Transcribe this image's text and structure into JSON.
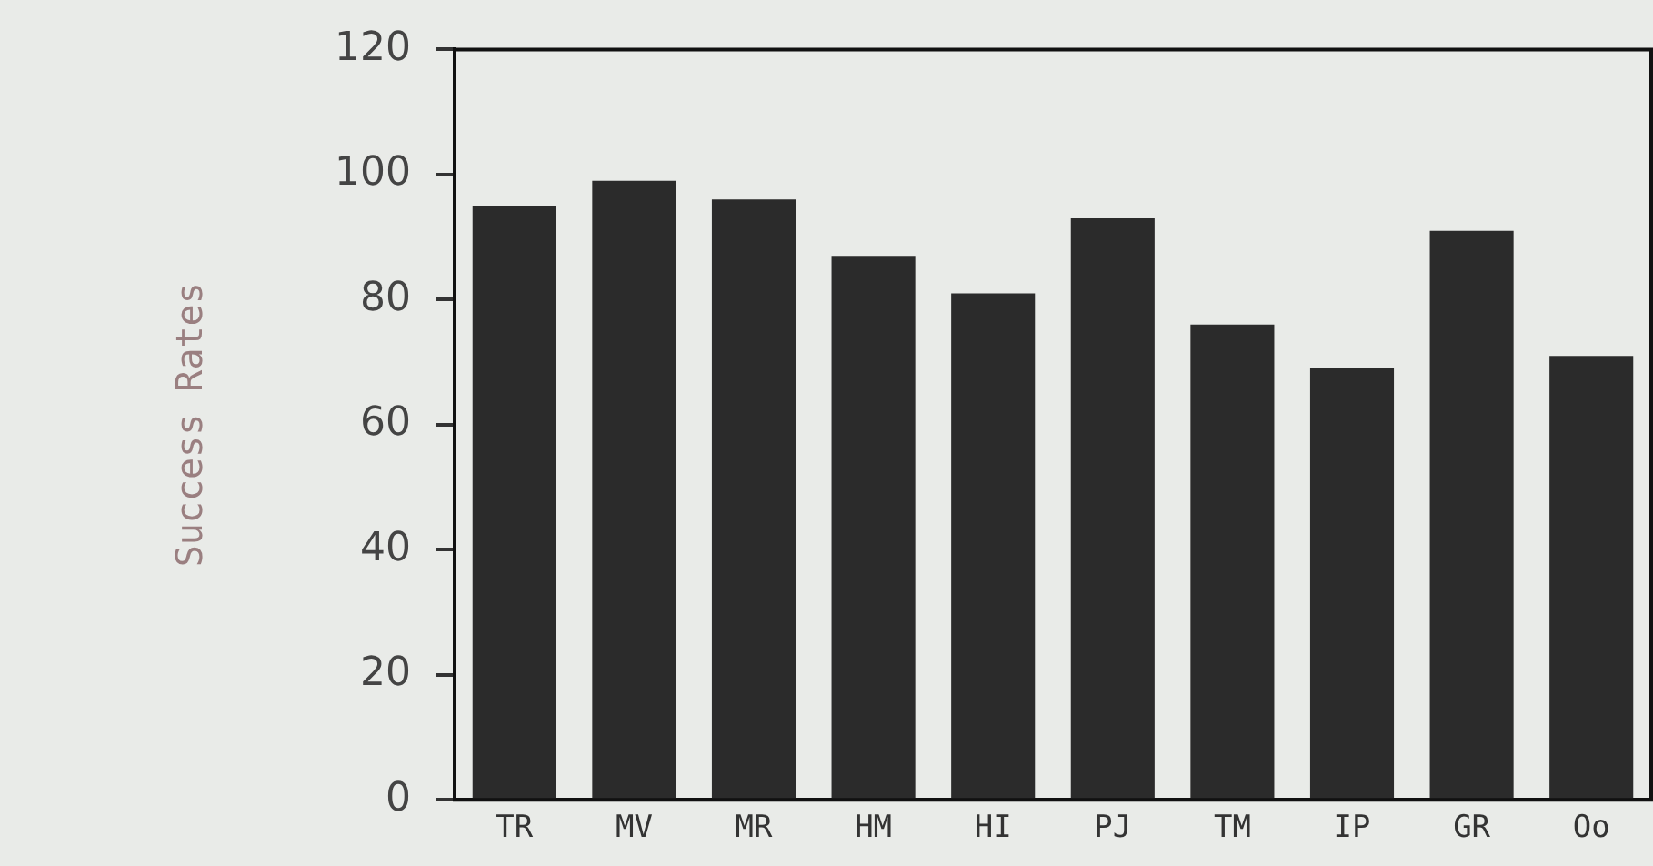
{
  "chart_data": {
    "type": "bar",
    "ylabel": "Success Rates",
    "categories": [
      "TR",
      "MV",
      "MR",
      "HM",
      "HI",
      "PJ",
      "TM",
      "IP",
      "GR",
      "Oo"
    ],
    "values": [
      95,
      99,
      96,
      87,
      81,
      93,
      76,
      69,
      91,
      71
    ],
    "color": "#2b2b2b",
    "ylim": [
      0,
      120
    ],
    "yticks": [
      0,
      20,
      40,
      60,
      80,
      100,
      120
    ],
    "grid": false,
    "legend": false
  }
}
